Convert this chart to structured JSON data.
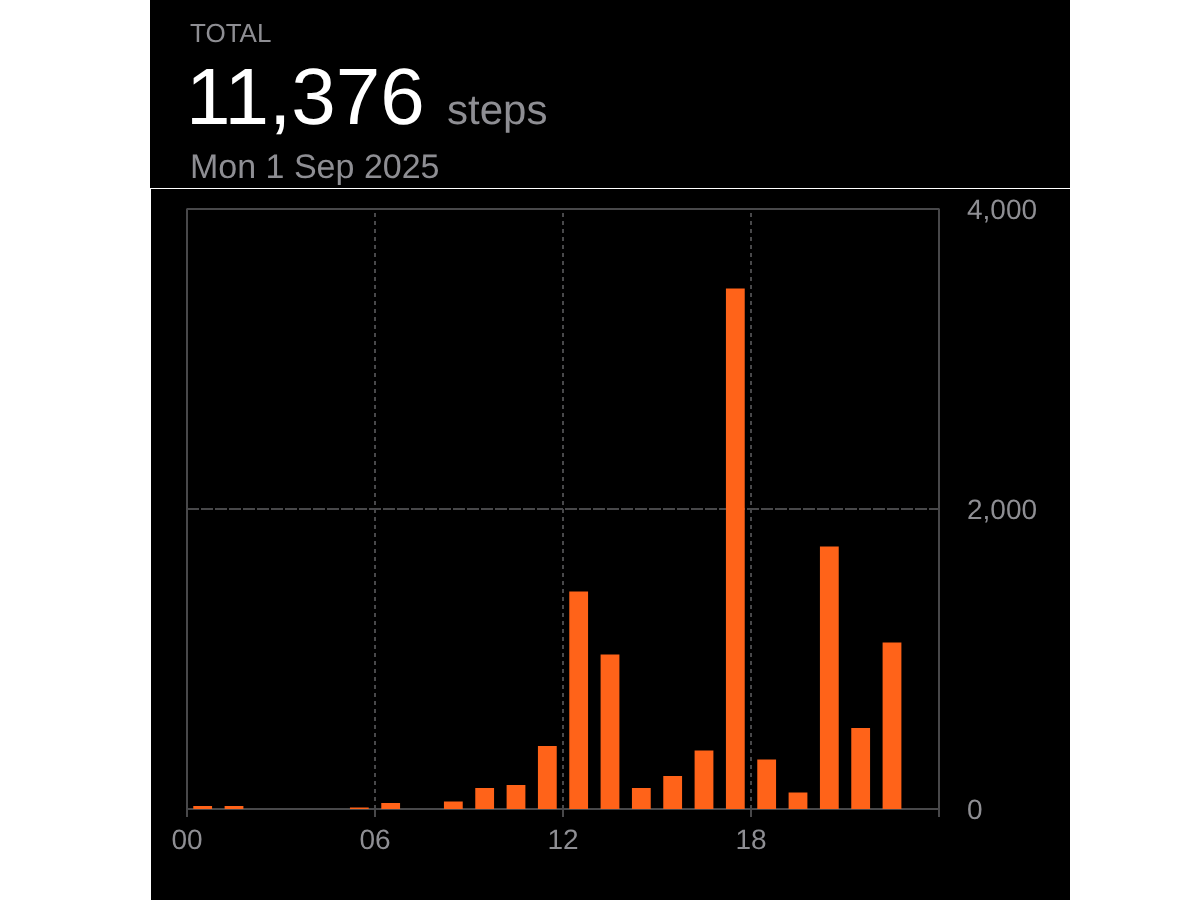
{
  "chart_data": {
    "type": "bar",
    "title": "TOTAL",
    "annotations": [
      "11,376",
      "steps"
    ],
    "subtitle": "Mon 1 Sep 2025",
    "x": [
      0.5,
      1.5,
      5.5,
      6.5,
      8.5,
      9.5,
      10.5,
      11.5,
      12.5,
      13.5,
      14.5,
      15.5,
      16.5,
      17.5,
      18.5,
      19.5,
      20.5,
      21.5,
      22.5
    ],
    "values": [
      20,
      20,
      10,
      40,
      50,
      140,
      160,
      420,
      1450,
      1030,
      140,
      220,
      390,
      3470,
      330,
      110,
      1750,
      540,
      1110
    ],
    "color": "#ff6319",
    "xlim": [
      0,
      24
    ],
    "xticks": [
      {
        "value": 0,
        "label": "00"
      },
      {
        "value": 6,
        "label": "06"
      },
      {
        "value": 12,
        "label": "12"
      },
      {
        "value": 18,
        "label": "18"
      },
      {
        "value": 24,
        "label": null
      }
    ],
    "ylim": [
      0,
      4000
    ],
    "yticks": [
      0,
      {
        "value": 2000,
        "label": "2,000"
      },
      {
        "value": 4000,
        "label": "4,000"
      }
    ],
    "grid": true
  }
}
